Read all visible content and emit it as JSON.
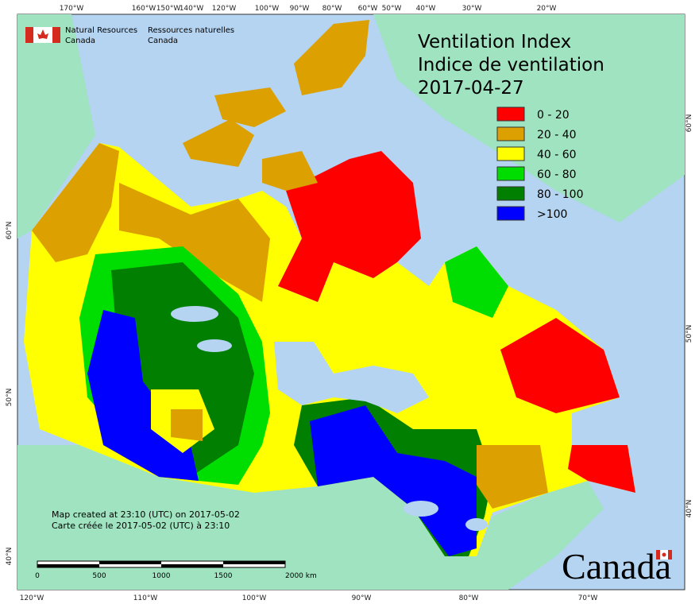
{
  "header": {
    "agency_en": "Natural Resources",
    "agency_en_country": "Canada",
    "agency_fr": "Ressources naturelles",
    "agency_fr_country": "Canada"
  },
  "title": {
    "line1": "Ventilation Index",
    "line2": "Indice de ventilation",
    "date": "2017-04-27"
  },
  "legend": [
    {
      "label": "0 - 20",
      "color": "#ff0000"
    },
    {
      "label": "20 - 40",
      "color": "#dca000"
    },
    {
      "label": "40 - 60",
      "color": "#ffff00"
    },
    {
      "label": "60 - 80",
      "color": "#00dd00"
    },
    {
      "label": "80 - 100",
      "color": "#007f00"
    },
    {
      "label": ">100",
      "color": "#0000ff"
    }
  ],
  "graticule": {
    "top": [
      "170°W",
      "160°W",
      "150°W",
      "140°W",
      "120°W",
      "100°W",
      "90°W",
      "80°W",
      "60°W",
      "50°W",
      "40°W",
      "30°W",
      "20°W"
    ],
    "bottom": [
      "120°W",
      "110°W",
      "100°W",
      "90°W",
      "80°W",
      "70°W"
    ],
    "left": [
      "60°N",
      "50°N",
      "40°N"
    ],
    "right": [
      "60°N",
      "50°N",
      "40°N"
    ]
  },
  "credits": {
    "en": "Map created at 23:10 (UTC) on 2017-05-02",
    "fr": "Carte créée le 2017-05-02 (UTC) à 23:10"
  },
  "scale_bar": {
    "labels": [
      "0",
      "500",
      "1000",
      "1500",
      "2000 km"
    ]
  },
  "wordmark": "Canada"
}
